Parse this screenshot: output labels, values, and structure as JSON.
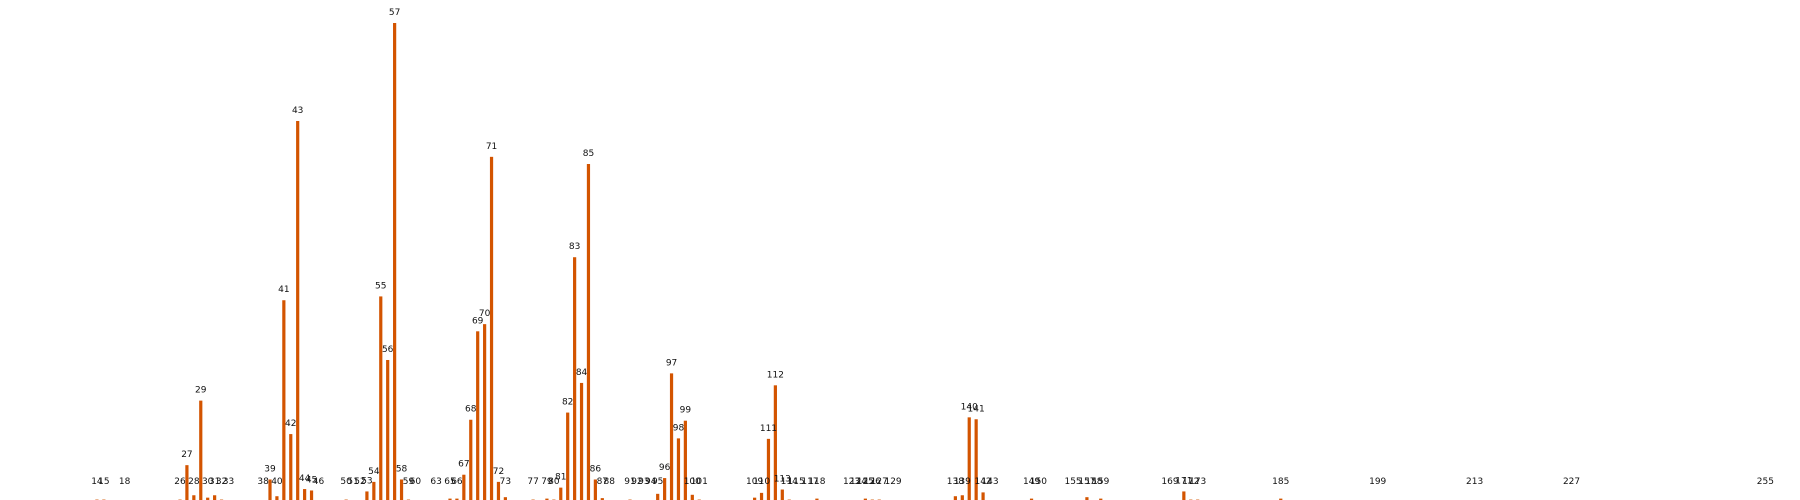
{
  "chart_data": {
    "type": "bar",
    "title": "",
    "xlabel": "",
    "ylabel": "",
    "bar_color": "#d35400",
    "xlim": [
      0,
      260
    ],
    "ylim": [
      0,
      100
    ],
    "bars": [
      {
        "x": 14,
        "value": 0.3,
        "label": "14"
      },
      {
        "x": 15,
        "value": 0.3,
        "label": "15"
      },
      {
        "x": 18,
        "value": 0,
        "label": "18"
      },
      {
        "x": 26,
        "value": 0.3,
        "label": "26"
      },
      {
        "x": 27,
        "value": 7.5,
        "label": "27"
      },
      {
        "x": 28,
        "value": 1.2,
        "label": "28"
      },
      {
        "x": 29,
        "value": 21,
        "label": "29"
      },
      {
        "x": 30,
        "value": 0.7,
        "label": "30"
      },
      {
        "x": 31,
        "value": 1.2,
        "label": "31"
      },
      {
        "x": 32,
        "value": 0.3,
        "label": "32"
      },
      {
        "x": 33,
        "value": 0,
        "label": "33"
      },
      {
        "x": 38,
        "value": 0,
        "label": "38"
      },
      {
        "x": 39,
        "value": 4.5,
        "label": "39"
      },
      {
        "x": 40,
        "value": 1,
        "label": "40"
      },
      {
        "x": 41,
        "value": 42,
        "label": "41"
      },
      {
        "x": 42,
        "value": 14,
        "label": "42"
      },
      {
        "x": 43,
        "value": 79.5,
        "label": "43"
      },
      {
        "x": 44,
        "value": 2.5,
        "label": "44"
      },
      {
        "x": 45,
        "value": 2.2,
        "label": "45"
      },
      {
        "x": 46,
        "value": 0,
        "label": "46"
      },
      {
        "x": 50,
        "value": 0.3,
        "label": "50"
      },
      {
        "x": 51,
        "value": 0,
        "label": "51"
      },
      {
        "x": 52,
        "value": 0,
        "label": "52"
      },
      {
        "x": 53,
        "value": 2,
        "label": "53"
      },
      {
        "x": 54,
        "value": 4,
        "label": "54"
      },
      {
        "x": 55,
        "value": 42.8,
        "label": "55"
      },
      {
        "x": 56,
        "value": 29.5,
        "label": "56"
      },
      {
        "x": 57,
        "value": 100,
        "label": "57"
      },
      {
        "x": 58,
        "value": 4.5,
        "label": "58"
      },
      {
        "x": 59,
        "value": 0.3,
        "label": "59"
      },
      {
        "x": 60,
        "value": 0,
        "label": "60"
      },
      {
        "x": 63,
        "value": 0,
        "label": "63"
      },
      {
        "x": 65,
        "value": 0.5,
        "label": "65"
      },
      {
        "x": 66,
        "value": 0.5,
        "label": "66"
      },
      {
        "x": 67,
        "value": 5.5,
        "label": "67"
      },
      {
        "x": 68,
        "value": 17,
        "label": "68"
      },
      {
        "x": 69,
        "value": 35.5,
        "label": "69"
      },
      {
        "x": 70,
        "value": 37,
        "label": "70"
      },
      {
        "x": 71,
        "value": 72,
        "label": "71"
      },
      {
        "x": 72,
        "value": 4,
        "label": "72"
      },
      {
        "x": 73,
        "value": 0.8,
        "label": "73"
      },
      {
        "x": 77,
        "value": 0.3,
        "label": "77"
      },
      {
        "x": 79,
        "value": 0.5,
        "label": "79"
      },
      {
        "x": 80,
        "value": 0.3,
        "label": "80"
      },
      {
        "x": 81,
        "value": 2.8,
        "label": "81"
      },
      {
        "x": 82,
        "value": 18.5,
        "label": "82"
      },
      {
        "x": 83,
        "value": 51,
        "label": "83"
      },
      {
        "x": 84,
        "value": 24.7,
        "label": "84"
      },
      {
        "x": 85,
        "value": 70.5,
        "label": "85"
      },
      {
        "x": 86,
        "value": 4.5,
        "label": "86"
      },
      {
        "x": 87,
        "value": 0.6,
        "label": "87"
      },
      {
        "x": 88,
        "value": 0,
        "label": "88"
      },
      {
        "x": 91,
        "value": 0.3,
        "label": "91"
      },
      {
        "x": 92,
        "value": 0,
        "label": "92"
      },
      {
        "x": 93,
        "value": 0,
        "label": "93"
      },
      {
        "x": 94,
        "value": 0,
        "label": "94"
      },
      {
        "x": 95,
        "value": 1.5,
        "label": "95"
      },
      {
        "x": 96,
        "value": 4.8,
        "label": "96"
      },
      {
        "x": 97,
        "value": 26.7,
        "label": "97"
      },
      {
        "x": 98,
        "value": 13.1,
        "label": "98"
      },
      {
        "x": 99,
        "value": 16.8,
        "label": "99"
      },
      {
        "x": 100,
        "value": 1.3,
        "label": "100"
      },
      {
        "x": 101,
        "value": 0.3,
        "label": "101"
      },
      {
        "x": 109,
        "value": 0.7,
        "label": "109"
      },
      {
        "x": 110,
        "value": 1.7,
        "label": "110"
      },
      {
        "x": 111,
        "value": 13,
        "label": "111"
      },
      {
        "x": 112,
        "value": 24.2,
        "label": "112"
      },
      {
        "x": 113,
        "value": 2.4,
        "label": "113"
      },
      {
        "x": 114,
        "value": 0.3,
        "label": "114"
      },
      {
        "x": 115,
        "value": 0,
        "label": "115"
      },
      {
        "x": 117,
        "value": 0,
        "label": "117"
      },
      {
        "x": 118,
        "value": 0.5,
        "label": "118"
      },
      {
        "x": 123,
        "value": 0,
        "label": "123"
      },
      {
        "x": 124,
        "value": 0,
        "label": "124"
      },
      {
        "x": 125,
        "value": 0.5,
        "label": "125"
      },
      {
        "x": 126,
        "value": 0.3,
        "label": "126"
      },
      {
        "x": 127,
        "value": 0.3,
        "label": "127"
      },
      {
        "x": 129,
        "value": 0.2,
        "label": "129"
      },
      {
        "x": 138,
        "value": 1,
        "label": "138"
      },
      {
        "x": 139,
        "value": 1.2,
        "label": "139"
      },
      {
        "x": 140,
        "value": 17.5,
        "label": "140"
      },
      {
        "x": 141,
        "value": 17.1,
        "label": "141"
      },
      {
        "x": 142,
        "value": 1.8,
        "label": "142"
      },
      {
        "x": 143,
        "value": 0.2,
        "label": "143"
      },
      {
        "x": 149,
        "value": 0.5,
        "label": "149"
      },
      {
        "x": 150,
        "value": 0,
        "label": "150"
      },
      {
        "x": 155,
        "value": 0.2,
        "label": "155"
      },
      {
        "x": 157,
        "value": 0.8,
        "label": "157"
      },
      {
        "x": 158,
        "value": 0,
        "label": "158"
      },
      {
        "x": 159,
        "value": 0.5,
        "label": "159"
      },
      {
        "x": 169,
        "value": 0,
        "label": "169"
      },
      {
        "x": 171,
        "value": 2,
        "label": "171"
      },
      {
        "x": 172,
        "value": 0.3,
        "label": "172"
      },
      {
        "x": 173,
        "value": 0.3,
        "label": "173"
      },
      {
        "x": 185,
        "value": 0.5,
        "label": "185"
      },
      {
        "x": 199,
        "value": 0,
        "label": "199"
      },
      {
        "x": 213,
        "value": 0.2,
        "label": "213"
      },
      {
        "x": 227,
        "value": 0,
        "label": "227"
      },
      {
        "x": 255,
        "value": 0.2,
        "label": "255"
      }
    ]
  }
}
